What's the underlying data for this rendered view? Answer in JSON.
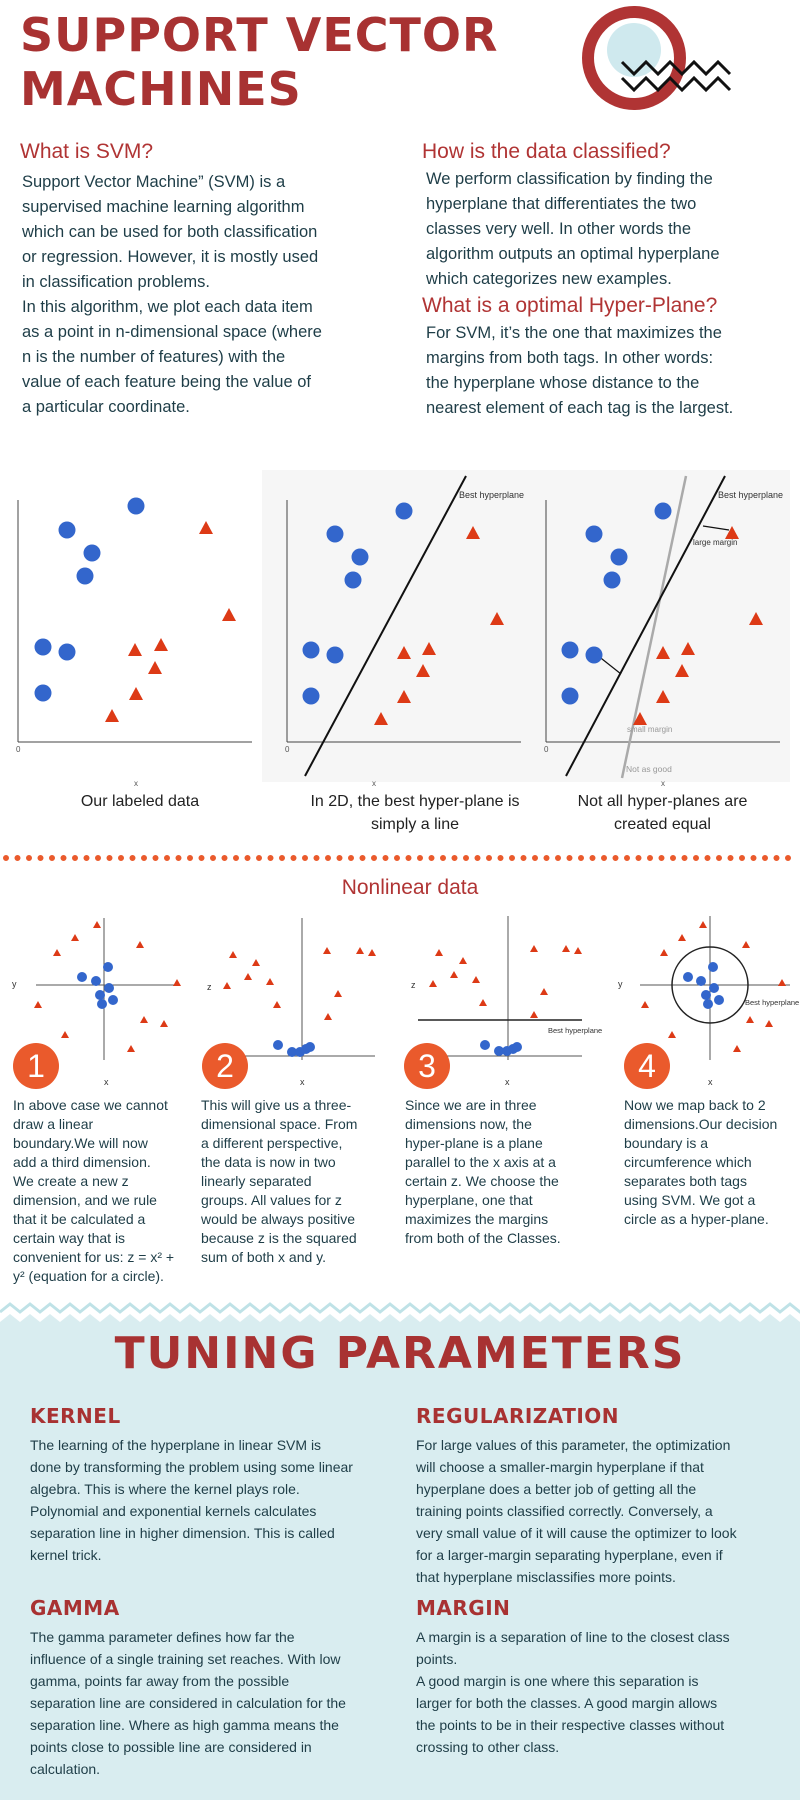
{
  "title": {
    "line1": "SUPPORT VECTOR",
    "line2": "MACHINES"
  },
  "what": {
    "heading": "What is SVM?",
    "lines": [
      "Support Vector Machine” (SVM) is a",
      "supervised machine learning algorithm",
      "which can be used for both classification",
      "or regression. However,  it is mostly used",
      "in classification problems.",
      "In this algorithm, we plot each data item",
      "as a point in n-dimensional space (where",
      "n is the number of features) with the",
      "value of each feature being the value of",
      "a particular coordinate."
    ]
  },
  "how": {
    "heading": "How is the data classified?",
    "lines": [
      "We perform classification by finding the",
      "hyperplane that differentiates the two",
      "classes very well. In other words the",
      "algorithm outputs an optimal hyperplane",
      "which categorizes new examples."
    ]
  },
  "optimal": {
    "heading": "What is a optimal Hyper-Plane?",
    "lines": [
      "For SVM, it’s the one that maximizes the",
      "margins from both tags. In other words:",
      "the hyperplane whose distance to the",
      "nearest element of each tag is the largest."
    ]
  },
  "plots": {
    "axis_zero": "0",
    "axis_x": "x",
    "best_hyperplane": "Best hyperplane",
    "large_margin": "large margin",
    "small_margin": "small margin",
    "not_as_good": "Not as good",
    "captions": [
      [
        "Our labeled data"
      ],
      [
        "In 2D, the best hyper-plane is",
        "simply a line"
      ],
      [
        "Not all hyper-planes are",
        "created equal"
      ]
    ]
  },
  "nonlinear": {
    "heading": "Nonlinear data",
    "label_y": "y",
    "label_z": "z",
    "label_x": "x",
    "best_hyperplane": "Best hyperplane",
    "steps": [
      {
        "num": "1",
        "lines": [
          "In above case we cannot",
          "draw a linear",
          "boundary.We will now",
          "add a third dimension.",
          "We create a new z",
          "dimension, and we rule",
          "that it be calculated a",
          "certain way that is",
          "convenient for us: z = x² +",
          "y² (equation for a circle)."
        ]
      },
      {
        "num": "2",
        "lines": [
          "This will give us a three-",
          "dimensional space. From",
          "a different perspective,",
          "the data is now in two",
          "linearly separated",
          "groups. All values for z",
          "would be always positive",
          "because z is the squared",
          "sum of both x and y."
        ]
      },
      {
        "num": "3",
        "lines": [
          "Since we are in three",
          "dimensions now, the",
          "hyper-plane is a plane",
          "parallel to the x axis at a",
          "certain z. We choose the",
          "hyperplane, one that",
          "maximizes the margins",
          "from both of the Classes."
        ]
      },
      {
        "num": "4",
        "lines": [
          "Now we map back to 2",
          "dimensions.Our decision",
          "boundary is a",
          "circumference which",
          "separates both tags",
          "using SVM. We got a",
          "circle as a hyper-plane."
        ]
      }
    ]
  },
  "tuning": {
    "heading": "TUNING PARAMETERS",
    "kernel": {
      "heading": "KERNEL",
      "lines": [
        "The learning of the hyperplane in linear SVM is",
        "done by transforming the problem using some linear",
        "algebra. This is where the kernel plays role.",
        "Polynomial and exponential kernels calculates",
        "separation line in higher dimension. This is called",
        "kernel trick."
      ]
    },
    "regularization": {
      "heading": "REGULARIZATION",
      "lines": [
        "For large values of this parameter, the optimization",
        "will choose a smaller-margin hyperplane if that",
        "hyperplane does a better job of getting all the",
        "training points classified correctly. Conversely, a",
        "very small value of it will cause the optimizer to look",
        "for a larger-margin separating hyperplane, even if",
        "that hyperplane misclassifies more points."
      ]
    },
    "gamma": {
      "heading": "GAMMA",
      "lines": [
        "The gamma parameter defines how far the",
        "influence of a single training set reaches. With low",
        "gamma, points far away from the possible",
        "separation line are considered in calculation for the",
        "separation line. Where as high gamma means the",
        "points close to possible line are considered in",
        "calculation."
      ]
    },
    "margin": {
      "heading": "MARGIN",
      "lines": [
        "A margin is a separation of line to the closest class",
        "points.",
        "A good margin is one where this separation is",
        "larger for both the classes. A good margin allows",
        "the points to be in their respective classes without",
        "crossing to other class."
      ]
    }
  },
  "colors": {
    "accent": "#a83232",
    "blue_point": "#3366cc",
    "red_point": "#dd3a16",
    "step_circle": "#ea5a2c",
    "tuning_bg": "#d9edf0"
  }
}
